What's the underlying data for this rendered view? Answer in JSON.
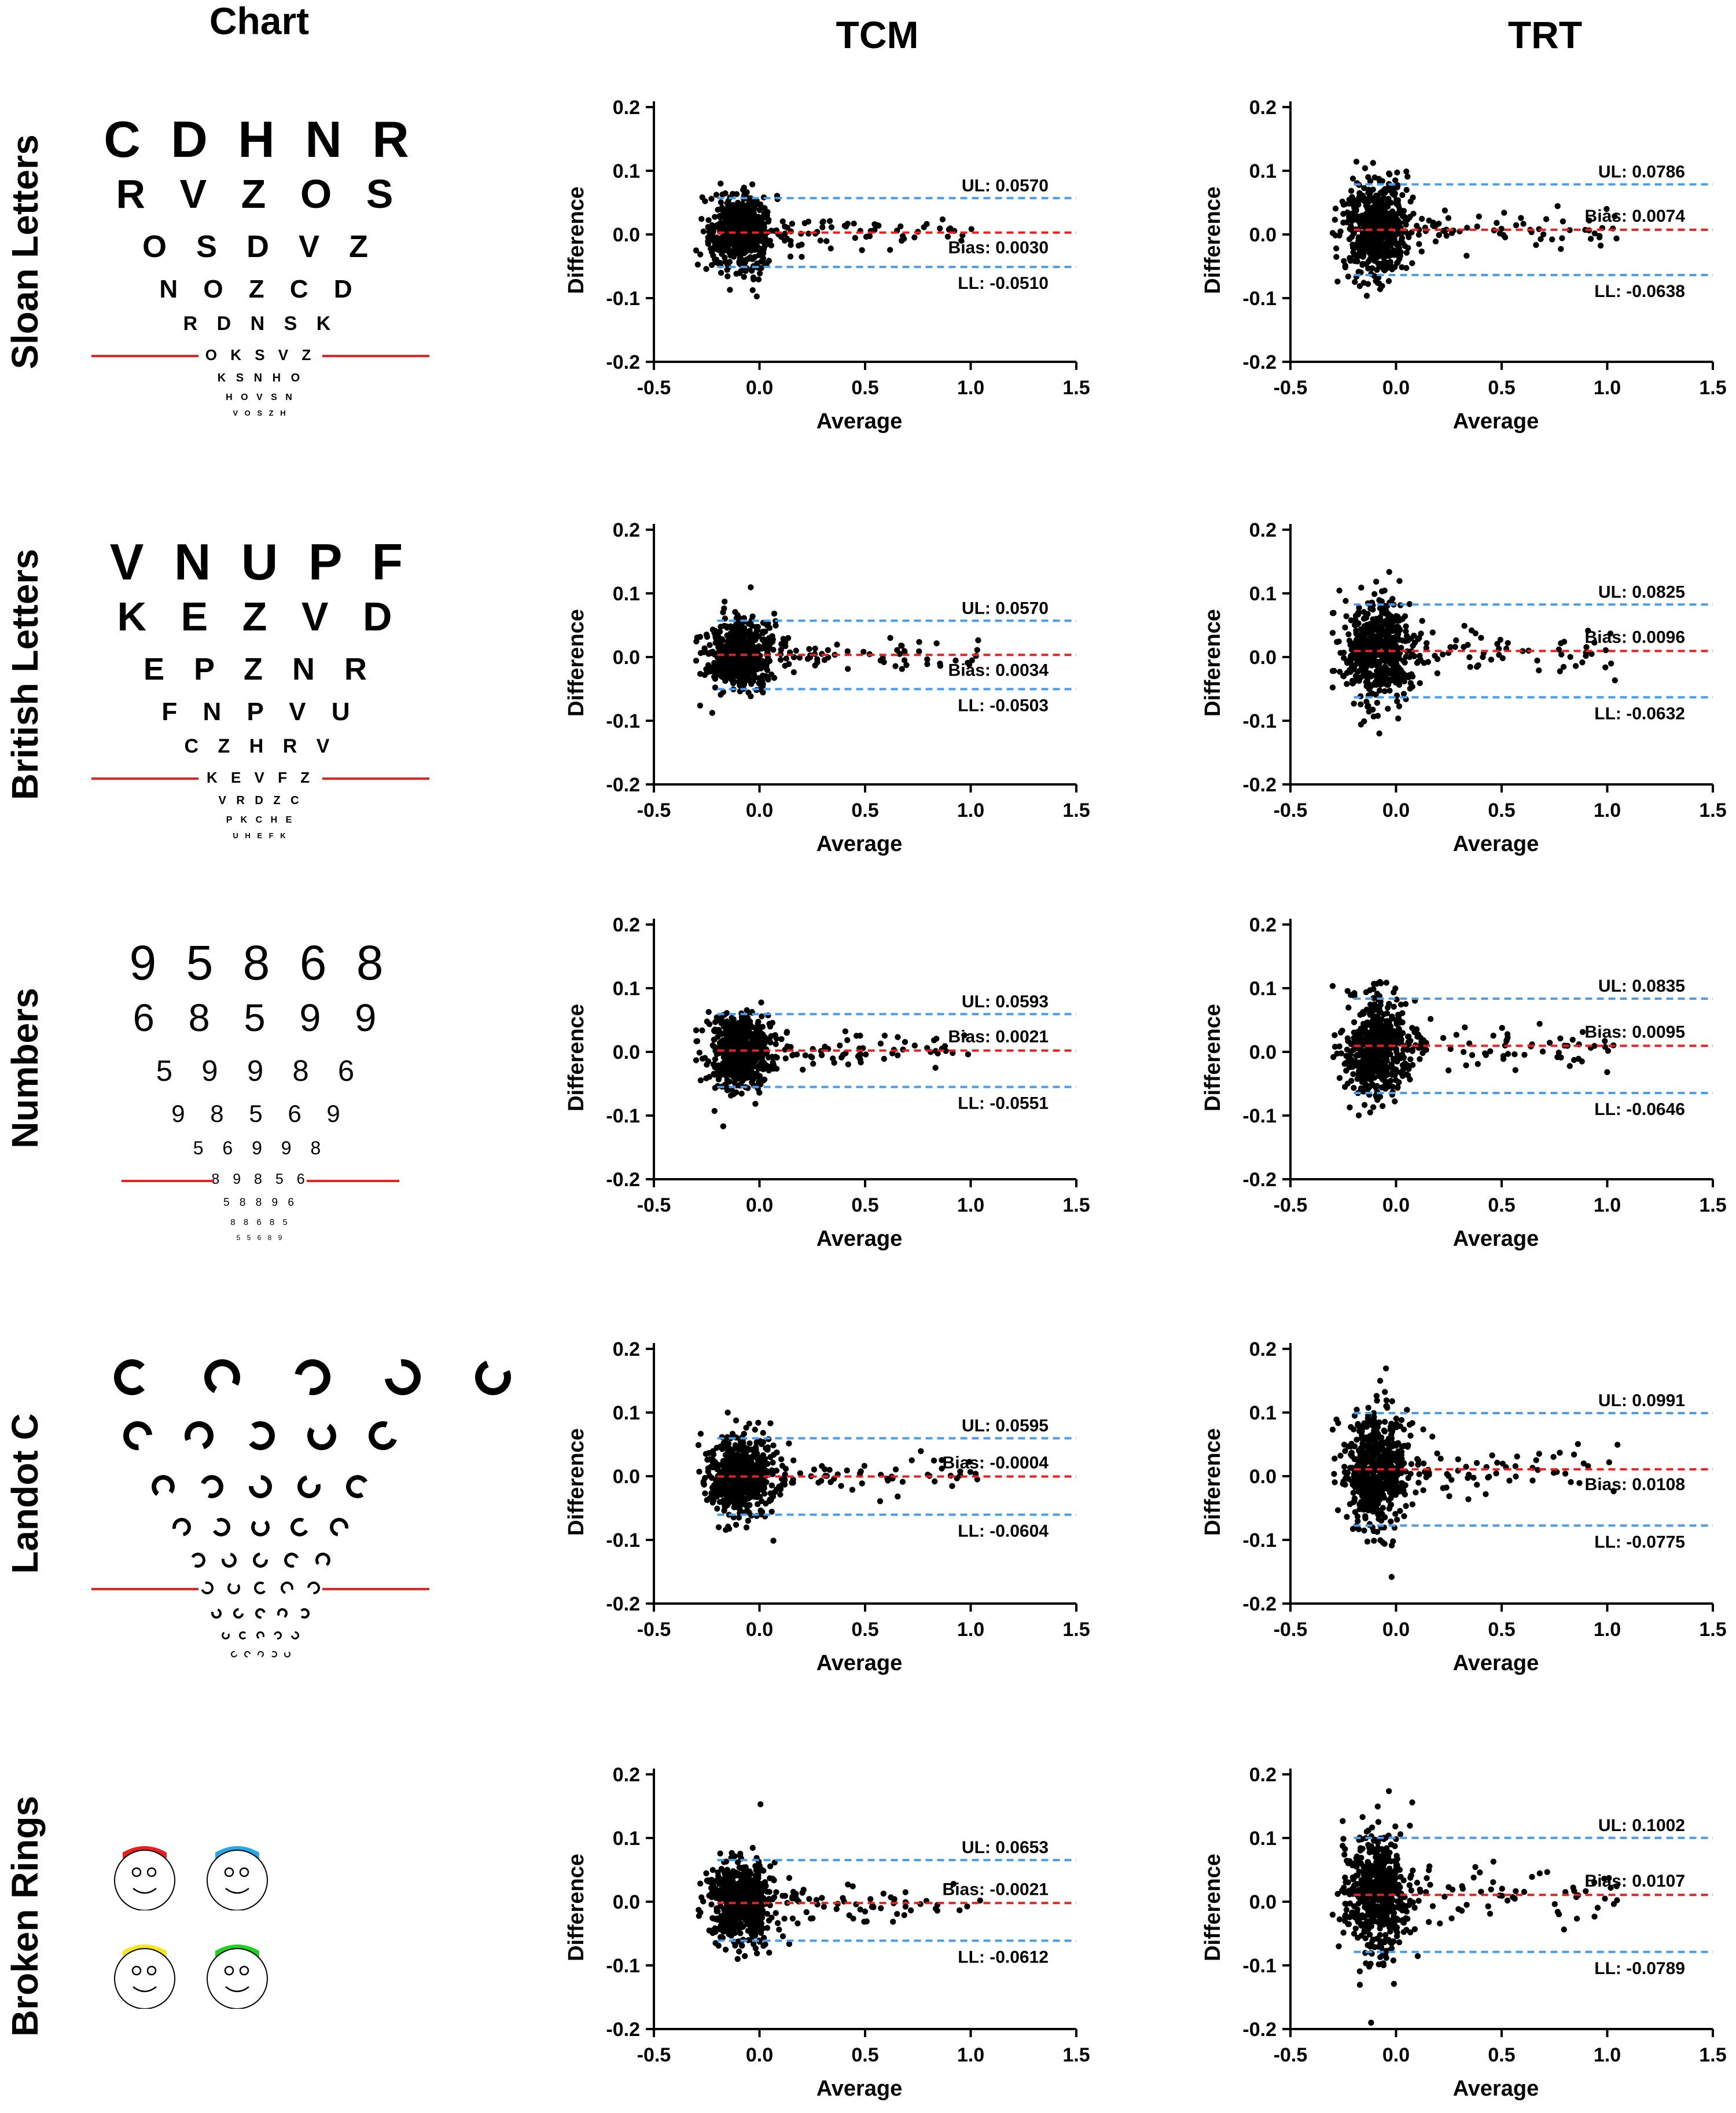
{
  "column_headers": {
    "chart": "Chart",
    "tcm": "TCM",
    "trt": "TRT"
  },
  "axis_defaults": {
    "xlabel": "Average",
    "ylabel": "Difference",
    "xlim": [
      -0.5,
      1.5
    ],
    "ylim": [
      -0.2,
      0.2
    ],
    "xticks": [
      "-0.5",
      "0.0",
      "0.5",
      "1.0",
      "1.5"
    ],
    "yticks": [
      "0.2",
      "0.1",
      "0.0",
      "-0.1",
      "-0.2"
    ]
  },
  "colors": {
    "bias_line": "#e8201f",
    "limit_line": "#4a9be8",
    "points": "#000000",
    "chart_rule": "#e8201f"
  },
  "rows": [
    {
      "label": "Sloan Letters",
      "chart_type": "letters",
      "chart_lines": [
        "C D H N R",
        "R V Z O S",
        "O S D V Z",
        "N O Z C D",
        "R D N S K",
        "O K S V Z",
        "K S N H O",
        "H O V S N",
        "V O S Z H"
      ],
      "tcm": {
        "ul": 0.057,
        "bias": 0.003,
        "ll": -0.051,
        "ul_label": "UL: 0.0570",
        "bias_label": "Bias: 0.0030",
        "ll_label": "LL: -0.0510"
      },
      "trt": {
        "ul": 0.0786,
        "bias": 0.0074,
        "ll": -0.0638,
        "ul_label": "UL: 0.0786",
        "bias_label": "Bias: 0.0074",
        "ll_label": "LL: -0.0638"
      }
    },
    {
      "label": "British Letters",
      "chart_type": "letters",
      "chart_lines": [
        "V N U P F",
        "K E Z V D",
        "E P Z N R",
        "F N P V U",
        "C Z H R V",
        "K E V F Z",
        "V R D Z C",
        "P K C H E",
        "U H E F K"
      ],
      "tcm": {
        "ul": 0.057,
        "bias": 0.0034,
        "ll": -0.0503,
        "ul_label": "UL: 0.0570",
        "bias_label": "Bias: 0.0034",
        "ll_label": "LL: -0.0503"
      },
      "trt": {
        "ul": 0.0825,
        "bias": 0.0096,
        "ll": -0.0632,
        "ul_label": "UL: 0.0825",
        "bias_label": "Bias: 0.0096",
        "ll_label": "LL: -0.0632"
      }
    },
    {
      "label": "Numbers",
      "chart_type": "numbers",
      "chart_lines": [
        "9 5 8 6 8",
        "6 8 5 9 9",
        "5 9 9 8 6",
        "9 8 5 6 9",
        "5 6 9 9 8",
        "8 9 8 5 6",
        "5 8 8 9 6",
        "8 8 6 8 5",
        "5 5 6 8 9"
      ],
      "tcm": {
        "ul": 0.0593,
        "bias": 0.0021,
        "ll": -0.0551,
        "ul_label": "UL: 0.0593",
        "bias_label": "Bias: 0.0021",
        "ll_label": "LL: -0.0551"
      },
      "trt": {
        "ul": 0.0835,
        "bias": 0.0095,
        "ll": -0.0646,
        "ul_label": "UL: 0.0835",
        "bias_label": "Bias: 0.0095",
        "ll_label": "LL: -0.0646"
      }
    },
    {
      "label": "Landot C",
      "chart_type": "landolt",
      "chart_lines": [],
      "tcm": {
        "ul": 0.0595,
        "bias": -0.0004,
        "ll": -0.0604,
        "ul_label": "UL: 0.0595",
        "bias_label": "Bias: -0.0004",
        "ll_label": "LL: -0.0604"
      },
      "trt": {
        "ul": 0.0991,
        "bias": 0.0108,
        "ll": -0.0775,
        "ul_label": "UL: 0.0991",
        "bias_label": "Bias: 0.0108",
        "ll_label": "LL: -0.0775"
      }
    },
    {
      "label": "Broken Rings",
      "chart_type": "faces",
      "chart_lines": [],
      "face_hat_colors": [
        "#e8201f",
        "#2aa6e8",
        "#f5e61e",
        "#1fd21f"
      ],
      "tcm": {
        "ul": 0.0653,
        "bias": -0.0021,
        "ll": -0.0612,
        "ul_label": "UL: 0.0653",
        "bias_label": "Bias: -0.0021",
        "ll_label": "LL: -0.0612"
      },
      "trt": {
        "ul": 0.1002,
        "bias": 0.0107,
        "ll": -0.0789,
        "ul_label": "UL: 0.1002",
        "bias_label": "Bias: 0.0107",
        "ll_label": "LL: -0.0789"
      }
    }
  ],
  "chart_data": [
    {
      "type": "scatter",
      "name": "Sloan Letters TCM",
      "xlabel": "Average",
      "ylabel": "Difference",
      "xlim": [
        -0.5,
        1.5
      ],
      "ylim": [
        -0.2,
        0.2
      ],
      "grid": false,
      "lines": {
        "ul": 0.057,
        "bias": 0.003,
        "ll": -0.051
      }
    },
    {
      "type": "scatter",
      "name": "Sloan Letters TRT",
      "xlabel": "Average",
      "ylabel": "Difference",
      "xlim": [
        -0.5,
        1.5
      ],
      "ylim": [
        -0.2,
        0.2
      ],
      "grid": false,
      "lines": {
        "ul": 0.0786,
        "bias": 0.0074,
        "ll": -0.0638
      }
    },
    {
      "type": "scatter",
      "name": "British Letters TCM",
      "xlabel": "Average",
      "ylabel": "Difference",
      "xlim": [
        -0.5,
        1.5
      ],
      "ylim": [
        -0.2,
        0.2
      ],
      "grid": false,
      "lines": {
        "ul": 0.057,
        "bias": 0.0034,
        "ll": -0.0503
      }
    },
    {
      "type": "scatter",
      "name": "British Letters TRT",
      "xlabel": "Average",
      "ylabel": "Difference",
      "xlim": [
        -0.5,
        1.5
      ],
      "ylim": [
        -0.2,
        0.2
      ],
      "grid": false,
      "lines": {
        "ul": 0.0825,
        "bias": 0.0096,
        "ll": -0.0632
      }
    },
    {
      "type": "scatter",
      "name": "Numbers TCM",
      "xlabel": "Average",
      "ylabel": "Difference",
      "xlim": [
        -0.5,
        1.5
      ],
      "ylim": [
        -0.2,
        0.2
      ],
      "grid": false,
      "lines": {
        "ul": 0.0593,
        "bias": 0.0021,
        "ll": -0.0551
      }
    },
    {
      "type": "scatter",
      "name": "Numbers TRT",
      "xlabel": "Average",
      "ylabel": "Difference",
      "xlim": [
        -0.5,
        1.5
      ],
      "ylim": [
        -0.2,
        0.2
      ],
      "grid": false,
      "lines": {
        "ul": 0.0835,
        "bias": 0.0095,
        "ll": -0.0646
      }
    },
    {
      "type": "scatter",
      "name": "Landot C TCM",
      "xlabel": "Average",
      "ylabel": "Difference",
      "xlim": [
        -0.5,
        1.5
      ],
      "ylim": [
        -0.2,
        0.2
      ],
      "grid": false,
      "lines": {
        "ul": 0.0595,
        "bias": -0.0004,
        "ll": -0.0604
      }
    },
    {
      "type": "scatter",
      "name": "Landot C TRT",
      "xlabel": "Average",
      "ylabel": "Difference",
      "xlim": [
        -0.5,
        1.5
      ],
      "ylim": [
        -0.2,
        0.2
      ],
      "grid": false,
      "lines": {
        "ul": 0.0991,
        "bias": 0.0108,
        "ll": -0.0775
      }
    },
    {
      "type": "scatter",
      "name": "Broken Rings TCM",
      "xlabel": "Average",
      "ylabel": "Difference",
      "xlim": [
        -0.5,
        1.5
      ],
      "ylim": [
        -0.2,
        0.2
      ],
      "grid": false,
      "lines": {
        "ul": 0.0653,
        "bias": -0.0021,
        "ll": -0.0612
      }
    },
    {
      "type": "scatter",
      "name": "Broken Rings TRT",
      "xlabel": "Average",
      "ylabel": "Difference",
      "xlim": [
        -0.5,
        1.5
      ],
      "ylim": [
        -0.2,
        0.2
      ],
      "grid": false,
      "lines": {
        "ul": 0.1002,
        "bias": 0.0107,
        "ll": -0.0789
      }
    }
  ]
}
